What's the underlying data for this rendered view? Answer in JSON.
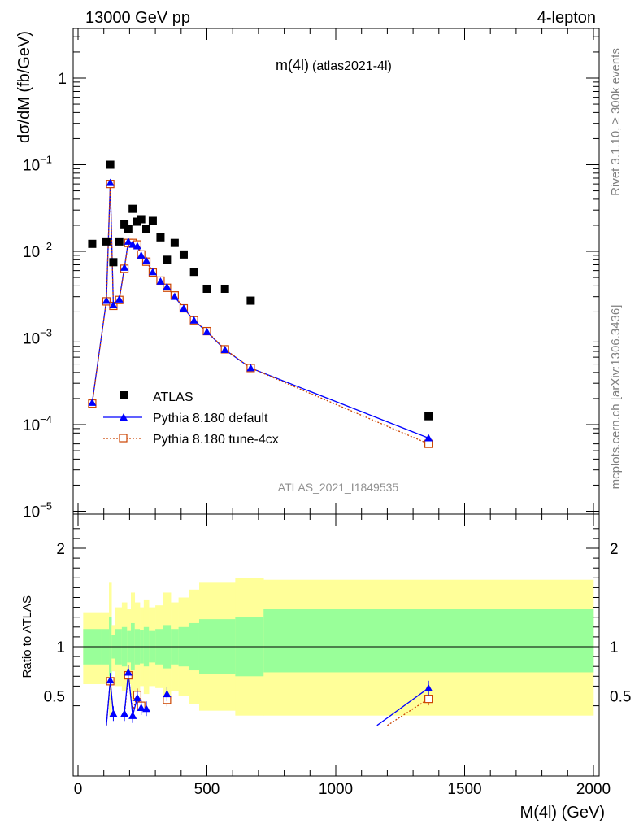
{
  "header": {
    "energy_label": "13000 GeV pp",
    "channel_label": "4-lepton"
  },
  "side_labels": {
    "rivet": "Rivet 3.1.10, ≥ 300k events",
    "mcplots": "mcplots.cern.ch [arXiv:1306.3436]"
  },
  "colors": {
    "atlas": "#000000",
    "pythia_default": "#0000ff",
    "pythia_tune": "#cc4400",
    "band_inner": "#99ff99",
    "band_outer": "#ffff99"
  },
  "chart_data": [
    {
      "type": "scatter",
      "title": "m(4l)",
      "subtitle": "(atlas2021-4l)",
      "watermark": "ATLAS_2021_I1849535",
      "xlabel": "",
      "ylabel": "dσ/dM (fb/GeV)",
      "xlim": [
        0,
        2000
      ],
      "ylim": [
        1e-05,
        3.5
      ],
      "yscale": "log",
      "y_tick_labels": [
        "10^-5",
        "10^-4",
        "10^-3",
        "10^-2",
        "10^-1",
        "1"
      ],
      "legend_position": "bottom-left",
      "series": [
        {
          "name": "ATLAS",
          "marker": "filled-square",
          "x": [
            55,
            110,
            125,
            137,
            160,
            180,
            195,
            212,
            230,
            245,
            265,
            290,
            320,
            345,
            375,
            410,
            450,
            500,
            570,
            670,
            1360
          ],
          "y": [
            0.0122,
            0.013,
            0.1,
            0.0075,
            0.013,
            0.0205,
            0.018,
            0.031,
            0.022,
            0.0235,
            0.018,
            0.0225,
            0.0145,
            0.008,
            0.0125,
            0.0092,
            0.0058,
            0.0037,
            0.0037,
            0.0027,
            0.000125
          ]
        },
        {
          "name": "Pythia 8.180 default",
          "marker": "triangle-line",
          "x": [
            55,
            110,
            125,
            137,
            160,
            180,
            195,
            212,
            230,
            245,
            265,
            290,
            320,
            345,
            375,
            410,
            450,
            500,
            570,
            670,
            1360
          ],
          "y": [
            0.00018,
            0.0027,
            0.062,
            0.0024,
            0.0028,
            0.0065,
            0.013,
            0.012,
            0.0115,
            0.009,
            0.0078,
            0.0058,
            0.0045,
            0.0039,
            0.003,
            0.0022,
            0.0016,
            0.00118,
            0.00073,
            0.00045,
            7e-05
          ]
        },
        {
          "name": "Pythia 8.180 tune-4cx",
          "marker": "open-square-dotted",
          "x": [
            55,
            110,
            125,
            137,
            160,
            180,
            195,
            212,
            230,
            245,
            265,
            290,
            320,
            345,
            375,
            410,
            450,
            500,
            570,
            670,
            1360
          ],
          "y": [
            0.000175,
            0.00265,
            0.06,
            0.00235,
            0.00275,
            0.0063,
            0.0125,
            0.0125,
            0.012,
            0.0092,
            0.0076,
            0.0057,
            0.0046,
            0.0038,
            0.0031,
            0.0022,
            0.0016,
            0.0012,
            0.00074,
            0.00045,
            6e-05
          ]
        }
      ]
    },
    {
      "type": "line",
      "title": "",
      "xlabel": "M(4l) (GeV)",
      "ylabel": "Ratio to ATLAS",
      "xlim": [
        0,
        2000
      ],
      "ylim": [
        0.35,
        2.3
      ],
      "x_tick_labels": [
        "0",
        "500",
        "1000",
        "1500",
        "2000"
      ],
      "y_tick_labels": [
        "0.5",
        "1",
        "2"
      ],
      "reference_line": 1,
      "bands": {
        "edges": [
          20,
          90,
          120,
          130,
          145,
          170,
          190,
          205,
          220,
          240,
          255,
          275,
          300,
          330,
          360,
          390,
          430,
          470,
          530,
          610,
          720,
          2000
        ],
        "inner_low": [
          0.82,
          0.82,
          0.7,
          0.88,
          0.82,
          0.8,
          0.84,
          0.76,
          0.82,
          0.83,
          0.8,
          0.84,
          0.82,
          0.78,
          0.82,
          0.8,
          0.76,
          0.72,
          0.72,
          0.7,
          0.74
        ],
        "inner_high": [
          1.18,
          1.18,
          1.3,
          1.12,
          1.18,
          1.2,
          1.16,
          1.24,
          1.18,
          1.17,
          1.2,
          1.16,
          1.18,
          1.22,
          1.18,
          1.2,
          1.24,
          1.28,
          1.28,
          1.3,
          1.38
        ],
        "outer_low": [
          0.62,
          0.62,
          0.3,
          0.75,
          0.6,
          0.55,
          0.62,
          0.45,
          0.55,
          0.6,
          0.52,
          0.6,
          0.58,
          0.45,
          0.55,
          0.5,
          0.42,
          0.35,
          0.35,
          0.3,
          0.3
        ],
        "outer_high": [
          1.35,
          1.35,
          1.65,
          1.22,
          1.4,
          1.45,
          1.38,
          1.55,
          1.45,
          1.4,
          1.48,
          1.4,
          1.42,
          1.55,
          1.45,
          1.5,
          1.58,
          1.65,
          1.65,
          1.7,
          1.68
        ]
      },
      "series": [
        {
          "name": "Pythia 8.180 default",
          "segments": [
            {
              "x": [
                110,
                125,
                137
              ],
              "y": [
                0.2,
                0.66,
                0.32
              ]
            },
            {
              "x": [
                180,
                195,
                212
              ],
              "y": [
                0.32,
                0.74,
                0.3
              ]
            },
            {
              "x": [
                212,
                230,
                245
              ],
              "y": [
                0.3,
                0.48,
                0.38
              ]
            },
            {
              "x": [
                265
              ],
              "y": [
                0.37
              ]
            },
            {
              "x": [
                345
              ],
              "y": [
                0.52
              ]
            },
            {
              "x": [
                1160,
                1360
              ],
              "y": [
                0.2,
                0.58
              ]
            }
          ]
        },
        {
          "name": "Pythia 8.180 tune-4cx",
          "segments": [
            {
              "x": [
                110,
                125,
                137
              ],
              "y": [
                0.2,
                0.65,
                0.32
              ]
            },
            {
              "x": [
                180,
                195,
                212
              ],
              "y": [
                0.3,
                0.71,
                0.34
              ]
            },
            {
              "x": [
                212,
                230,
                245
              ],
              "y": [
                0.34,
                0.51,
                0.4
              ]
            },
            {
              "x": [
                345
              ],
              "y": [
                0.46
              ]
            },
            {
              "x": [
                1200,
                1360
              ],
              "y": [
                0.2,
                0.47
              ]
            }
          ]
        }
      ]
    }
  ]
}
